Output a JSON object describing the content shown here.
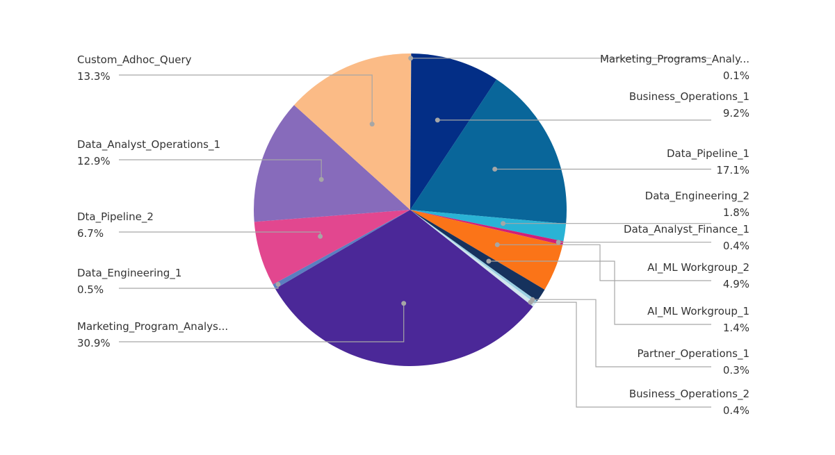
{
  "chart_data": {
    "type": "pie",
    "title": "",
    "start_angle_deg": 0,
    "direction": "clockwise",
    "slices": [
      {
        "name": "Marketing_Programs_Analy...",
        "value": 0.1,
        "label": "0.1%",
        "color": "#f5c89a",
        "side": "right"
      },
      {
        "name": "Business_Operations_1",
        "value": 9.2,
        "label": "9.2%",
        "color": "#032e86",
        "side": "right"
      },
      {
        "name": "Data_Pipeline_1",
        "value": 17.1,
        "label": "17.1%",
        "color": "#09669a",
        "side": "right"
      },
      {
        "name": "Data_Engineering_2",
        "value": 1.8,
        "label": "1.8%",
        "color": "#2ab3d5",
        "side": "right"
      },
      {
        "name": "Data_Analyst_Finance_1",
        "value": 0.4,
        "label": "0.4%",
        "color": "#d11f78",
        "side": "right"
      },
      {
        "name": "AI_ML Workgroup_2",
        "value": 4.9,
        "label": "4.9%",
        "color": "#fb7418",
        "side": "right"
      },
      {
        "name": "AI_ML Workgroup_1",
        "value": 1.4,
        "label": "1.4%",
        "color": "#16325d",
        "side": "right"
      },
      {
        "name": "Partner_Operations_1",
        "value": 0.3,
        "label": "0.3%",
        "color": "#9bd0e2",
        "side": "right"
      },
      {
        "name": "Business_Operations_2",
        "value": 0.4,
        "label": "0.4%",
        "color": "#d2e6ee",
        "side": "right"
      },
      {
        "name": "Marketing_Program_Analys...",
        "value": 30.9,
        "label": "30.9%",
        "color": "#4b2898",
        "side": "left"
      },
      {
        "name": "Data_Engineering_1",
        "value": 0.5,
        "label": "0.5%",
        "color": "#5b7ec0",
        "side": "left"
      },
      {
        "name": "Dta_Pipeline_2",
        "value": 6.7,
        "label": "6.7%",
        "color": "#e2478f",
        "side": "left"
      },
      {
        "name": "Data_Analyst_Operations_1",
        "value": 12.9,
        "label": "12.9%",
        "color": "#876bbb",
        "side": "left"
      },
      {
        "name": "Custom_Adhoc_Query",
        "value": 13.3,
        "label": "13.3%",
        "color": "#fbbb86",
        "side": "left"
      }
    ]
  }
}
